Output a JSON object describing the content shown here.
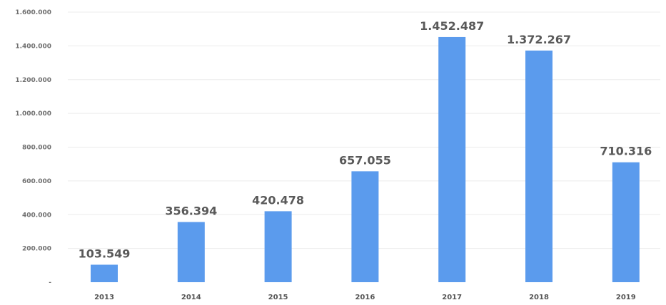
{
  "chart_data": {
    "type": "bar",
    "title": "",
    "xlabel": "",
    "ylabel": "",
    "categories": [
      "2013",
      "2014",
      "2015",
      "2016",
      "2017",
      "2018",
      "2019"
    ],
    "values": [
      103549,
      356394,
      420478,
      657055,
      1452487,
      1372267,
      710316
    ],
    "value_labels": [
      "103.549",
      "356.394",
      "420.478",
      "657.055",
      "1.452.487",
      "1.372.267",
      "710.316"
    ],
    "ylim": [
      0,
      1600000
    ],
    "y_ticks": [
      0,
      200000,
      400000,
      600000,
      800000,
      1000000,
      1200000,
      1400000,
      1600000
    ],
    "y_tick_labels": [
      "-",
      "200.000",
      "400.000",
      "600.000",
      "800.000",
      "1.000.000",
      "1.200.000",
      "1.400.000",
      "1.600.000"
    ],
    "grid": true,
    "legend": "none",
    "bar_color": "#5b9bed"
  }
}
